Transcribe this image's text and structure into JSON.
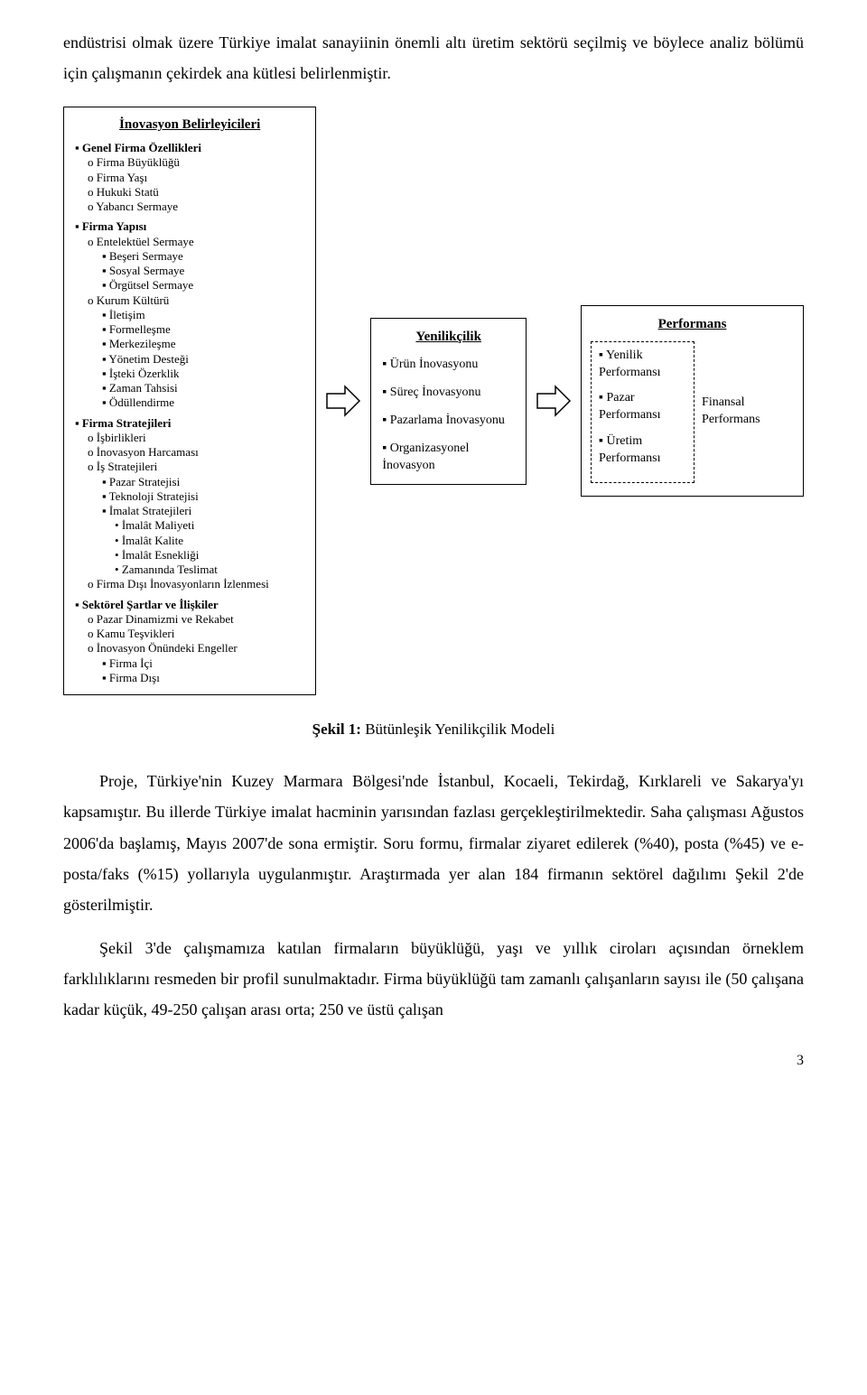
{
  "intro_text": "endüstrisi olmak üzere Türkiye imalat sanayiinin önemli altı üretim sektörü seçilmiş ve böylece analiz bölümü için çalışmanın çekirdek ana kütlesi belirlenmiştir.",
  "diagram": {
    "box1": {
      "title": "İnovasyon Belirleyicileri",
      "items": [
        {
          "level": 0,
          "text": "Genel Firma Özellikleri"
        },
        {
          "level": 1,
          "text": "Firma Büyüklüğü"
        },
        {
          "level": 1,
          "text": "Firma Yaşı"
        },
        {
          "level": 1,
          "text": "Hukuki Statü"
        },
        {
          "level": 1,
          "text": "Yabancı Sermaye"
        },
        {
          "level": 0,
          "text": "Firma Yapısı"
        },
        {
          "level": 1,
          "text": "Entelektüel Sermaye"
        },
        {
          "level": 2,
          "text": "Beşeri Sermaye"
        },
        {
          "level": 2,
          "text": "Sosyal Sermaye"
        },
        {
          "level": 2,
          "text": "Örgütsel Sermaye"
        },
        {
          "level": 1,
          "text": "Kurum Kültürü"
        },
        {
          "level": 2,
          "text": "İletişim"
        },
        {
          "level": 2,
          "text": "Formelleşme"
        },
        {
          "level": 2,
          "text": "Merkezileşme"
        },
        {
          "level": 2,
          "text": "Yönetim Desteği"
        },
        {
          "level": 2,
          "text": "İşteki Özerklik"
        },
        {
          "level": 2,
          "text": "Zaman Tahsisi"
        },
        {
          "level": 2,
          "text": "Ödüllendirme"
        },
        {
          "level": 0,
          "text": "Firma Stratejileri"
        },
        {
          "level": 1,
          "text": "İşbirlikleri"
        },
        {
          "level": 1,
          "text": "İnovasyon Harcaması"
        },
        {
          "level": 1,
          "text": "İş Stratejileri"
        },
        {
          "level": 2,
          "text": "Pazar Stratejisi"
        },
        {
          "level": 2,
          "text": "Teknoloji Stratejisi"
        },
        {
          "level": 2,
          "text": "İmalat Stratejileri"
        },
        {
          "level": 3,
          "text": "İmalât Maliyeti"
        },
        {
          "level": 3,
          "text": "İmalât Kalite"
        },
        {
          "level": 3,
          "text": "İmalât Esnekliği"
        },
        {
          "level": 3,
          "text": "Zamanında Teslimat"
        },
        {
          "level": 1,
          "text": "Firma Dışı İnovasyonların İzlenmesi"
        },
        {
          "level": 0,
          "text": "Sektörel Şartlar ve İlişkiler"
        },
        {
          "level": 1,
          "text": "Pazar Dinamizmi ve Rekabet"
        },
        {
          "level": 1,
          "text": "Kamu Teşvikleri"
        },
        {
          "level": 1,
          "text": "İnovasyon Önündeki Engeller"
        },
        {
          "level": 2,
          "text": "Firma İçi"
        },
        {
          "level": 2,
          "text": "Firma Dışı"
        }
      ]
    },
    "box2": {
      "title": "Yenilikçilik",
      "items": [
        "Ürün İnovasyonu",
        "Süreç İnovasyonu",
        "Pazarlama İnovasyonu",
        "Organizasyonel İnovasyon"
      ]
    },
    "box3": {
      "title": "Performans",
      "left_items": [
        "Yenilik Performansı",
        "Pazar Performansı",
        "Üretim Performansı"
      ],
      "right_label": "Finansal Performans"
    },
    "arrow_color": "#000000",
    "arrow_fill": "#ffffff"
  },
  "caption_prefix": "Şekil 1:",
  "caption_text": "Bütünleşik Yenilikçilik Modeli",
  "para1": "Proje, Türkiye'nin Kuzey Marmara Bölgesi'nde İstanbul, Kocaeli, Tekirdağ, Kırklareli ve Sakarya'yı kapsamıştır. Bu illerde Türkiye imalat hacminin yarısından fazlası gerçekleştirilmektedir. Saha çalışması Ağustos 2006'da başlamış, Mayıs 2007'de sona ermiştir. Soru formu, firmalar ziyaret edilerek (%40), posta (%45) ve e-posta/faks (%15) yollarıyla uygulanmıştır. Araştırmada yer alan 184 firmanın sektörel dağılımı Şekil 2'de gösterilmiştir.",
  "para2": "Şekil 3'de çalışmamıza katılan firmaların büyüklüğü, yaşı ve yıllık ciroları açısından örneklem farklılıklarını resmeden bir profil sunulmaktadır. Firma büyüklüğü tam zamanlı çalışanların sayısı ile (50 çalışana kadar küçük, 49-250 çalışan arası orta; 250 ve üstü çalışan",
  "page_number": "3"
}
